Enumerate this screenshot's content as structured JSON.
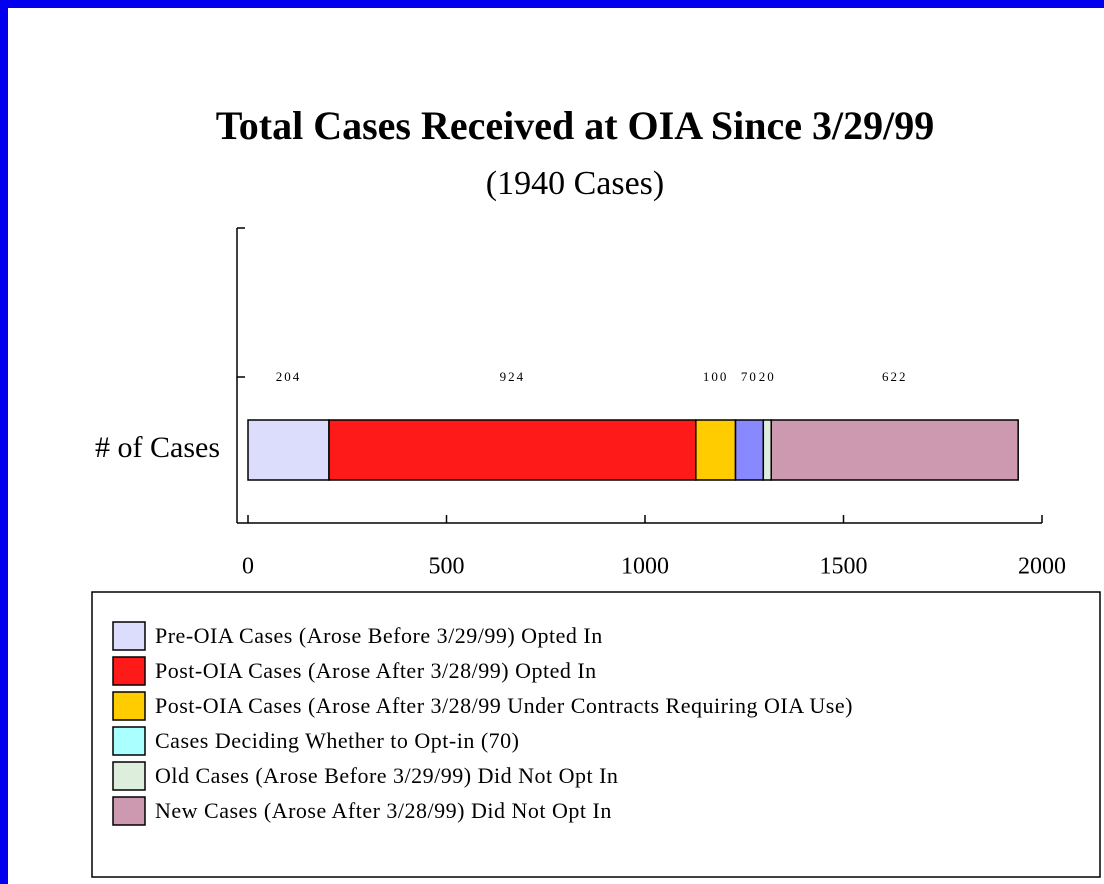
{
  "chart_data": {
    "type": "stacked_bar_horizontal",
    "title": "Total Cases Received at OIA Since 3/29/99",
    "subtitle": "(1940 Cases)",
    "categories": [
      "# of Cases"
    ],
    "series": [
      {
        "name": "Pre-OIA Cases (Arose Before 3/29/99) Opted In",
        "color": "#dcdcfc",
        "values": [
          204
        ]
      },
      {
        "name": "Post-OIA Cases (Arose After 3/28/99) Opted In",
        "color": "#ff1a1a",
        "values": [
          924
        ]
      },
      {
        "name": "Post-OIA Cases (Arose After 3/28/99 Under Contracts Requiring OIA Use)",
        "color": "#ffcc00",
        "values": [
          100
        ]
      },
      {
        "name": "Cases Deciding Whether to Opt-in (70)",
        "color": "#8888ff",
        "legend_color": "#aaffff",
        "values": [
          70
        ]
      },
      {
        "name": "Old Cases (Arose Before 3/29/99) Did Not Opt In",
        "color": "#ddeedd",
        "values": [
          20
        ]
      },
      {
        "name": "New Cases (Arose After 3/28/99) Did Not Opt In",
        "color": "#cc99b0",
        "values": [
          622
        ]
      }
    ],
    "xlim": [
      0,
      2000
    ],
    "xticks": [
      0,
      500,
      1000,
      1500,
      2000
    ]
  }
}
